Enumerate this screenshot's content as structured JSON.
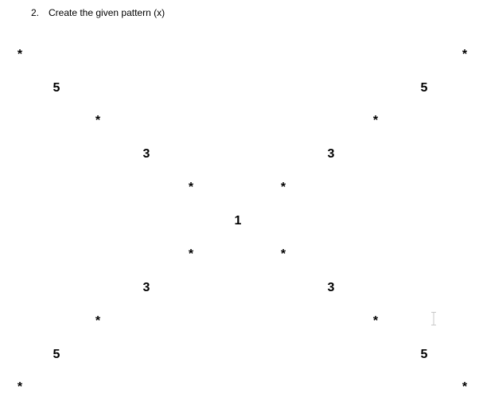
{
  "heading": {
    "number": "2.",
    "text": "Create the given pattern (x)"
  },
  "pattern": {
    "rows": [
      {
        "left": "*",
        "right": "*"
      },
      {
        "left": "5",
        "right": "5"
      },
      {
        "left": "*",
        "right": "*"
      },
      {
        "left": "3",
        "right": "3"
      },
      {
        "left": "*",
        "right": "*"
      },
      {
        "center": "1"
      },
      {
        "left": "*",
        "right": "*"
      },
      {
        "left": "3",
        "right": "3"
      },
      {
        "left": "*",
        "right": "*"
      },
      {
        "left": "5",
        "right": "5"
      },
      {
        "left": "*",
        "right": "*"
      }
    ]
  },
  "icons": {
    "cursor": "text-cursor-icon"
  },
  "colors": {
    "text": "#000000",
    "background": "#ffffff",
    "cursor": "#c8c8c8"
  }
}
